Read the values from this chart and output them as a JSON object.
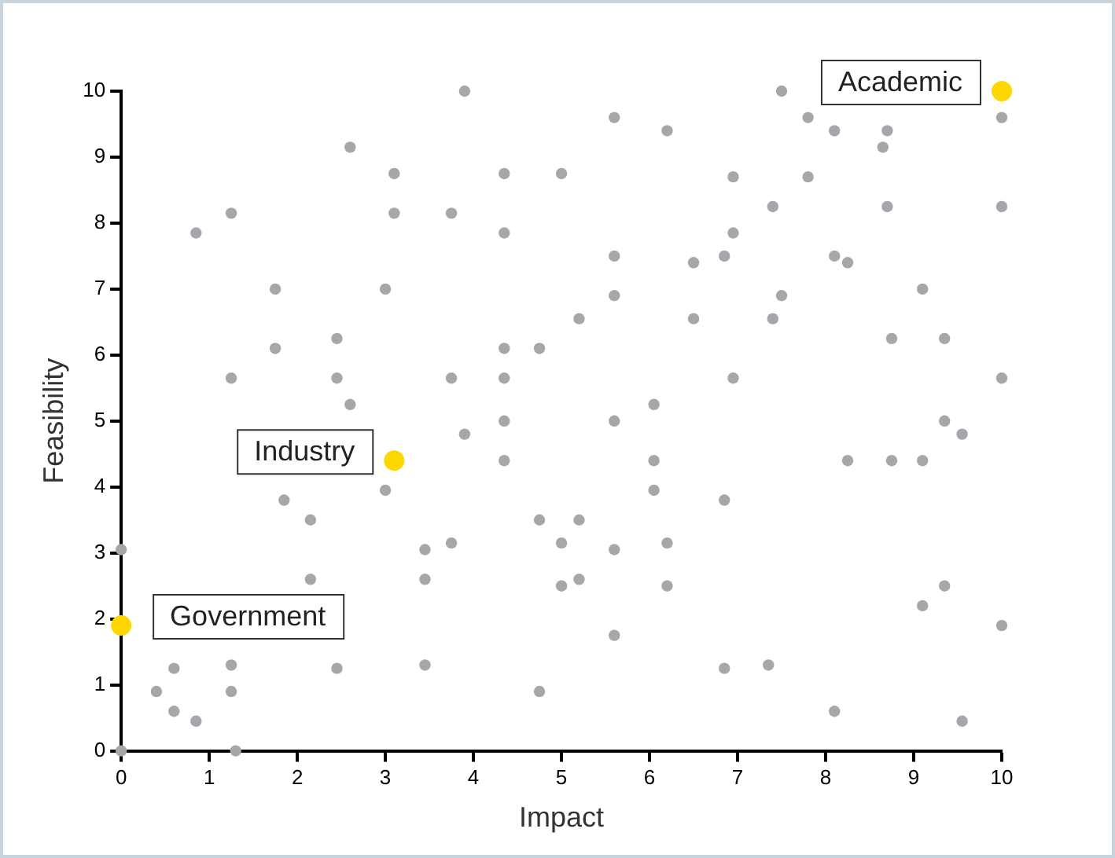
{
  "chart_data": {
    "type": "scatter",
    "xlabel": "Impact",
    "ylabel": "Feasibility",
    "xlim": [
      0,
      10
    ],
    "ylim": [
      0,
      10
    ],
    "xticks": [
      0,
      1,
      2,
      3,
      4,
      5,
      6,
      7,
      8,
      9,
      10
    ],
    "yticks": [
      0,
      1,
      2,
      3,
      4,
      5,
      6,
      7,
      8,
      9,
      10
    ],
    "grid": false,
    "legend": false,
    "marker": "circle",
    "series": [
      {
        "color": "#a7a7ab",
        "x": [
          3.9,
          7.5,
          5.6,
          7.8,
          10,
          2.6,
          6.2,
          8.1,
          8.7,
          8.65,
          3.1,
          4.35,
          5.0,
          6.95,
          7.8,
          7.4,
          8.7,
          10,
          0.85,
          1.25,
          3.1,
          3.75,
          4.35,
          6.95,
          5.6,
          6.5,
          6.85,
          8.1,
          8.25,
          1.75,
          3.0,
          7.5,
          9.1,
          5.6,
          5.2,
          6.5,
          7.4,
          2.45,
          4.35,
          4.75,
          1.75,
          8.75,
          9.35,
          1.25,
          2.45,
          3.75,
          4.35,
          6.95,
          10,
          2.6,
          6.05,
          4.35,
          5.6,
          9.35,
          9.55,
          3.9,
          4.35,
          6.05,
          8.25,
          8.75,
          9.1,
          3.0,
          6.05,
          1.85,
          6.85,
          2.15,
          4.75,
          5.2,
          0,
          3.45,
          3.75,
          5.0,
          5.6,
          6.2,
          2.15,
          3.45,
          5.0,
          5.2,
          6.2,
          9.35,
          9.1,
          10,
          5.6,
          0.6,
          1.25,
          2.45,
          3.45,
          6.85,
          7.35,
          0.4,
          1.25,
          4.75,
          0.6,
          0.85,
          8.1,
          9.55,
          0,
          1.3
        ],
        "values": [
          10,
          10,
          9.6,
          9.6,
          9.6,
          9.15,
          9.4,
          9.4,
          9.4,
          9.15,
          8.75,
          8.75,
          8.75,
          8.7,
          8.7,
          8.25,
          8.25,
          8.25,
          7.85,
          8.15,
          8.15,
          8.15,
          7.85,
          7.85,
          7.5,
          7.4,
          7.5,
          7.5,
          7.4,
          7.0,
          7.0,
          6.9,
          7.0,
          6.9,
          6.55,
          6.55,
          6.55,
          6.25,
          6.1,
          6.1,
          6.1,
          6.25,
          6.25,
          5.65,
          5.65,
          5.65,
          5.65,
          5.65,
          5.65,
          5.25,
          5.25,
          5.0,
          5.0,
          5.0,
          4.8,
          4.8,
          4.4,
          4.4,
          4.4,
          4.4,
          4.4,
          3.95,
          3.95,
          3.8,
          3.8,
          3.5,
          3.5,
          3.5,
          3.05,
          3.05,
          3.15,
          3.15,
          3.05,
          3.15,
          2.6,
          2.6,
          2.5,
          2.6,
          2.5,
          2.5,
          2.2,
          1.9,
          1.75,
          1.25,
          1.3,
          1.25,
          1.3,
          1.25,
          1.3,
          0.9,
          0.9,
          0.9,
          0.6,
          0.45,
          0.6,
          0.45,
          0,
          0
        ]
      },
      {
        "color": "#ffd700",
        "x": [
          10,
          3.1,
          0
        ],
        "values": [
          10,
          4.4,
          1.9
        ]
      }
    ],
    "annotations": [
      {
        "text": "Academic",
        "x": 10,
        "y": 10
      },
      {
        "text": "Industry",
        "x": 3.1,
        "y": 4.4
      },
      {
        "text": "Government",
        "x": 0,
        "y": 1.9
      }
    ]
  }
}
